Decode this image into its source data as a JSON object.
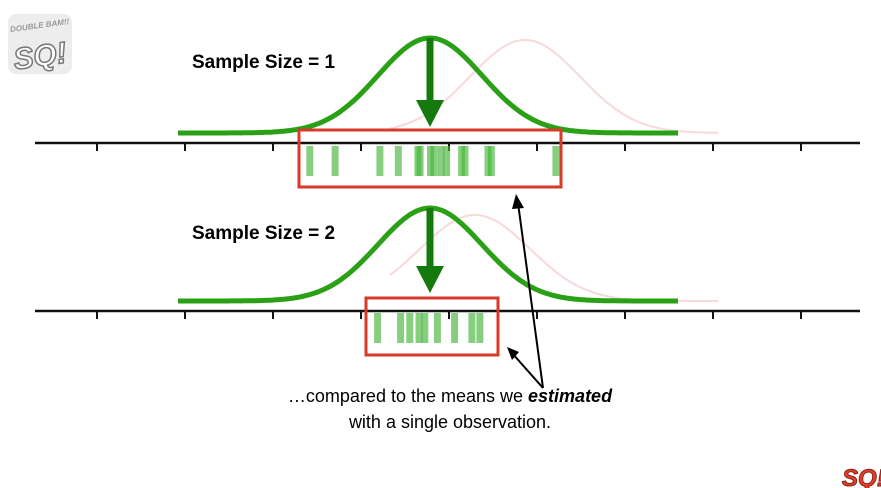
{
  "labels": {
    "sample_size_1": "Sample Size = 1",
    "sample_size_2": "Sample Size = 2"
  },
  "caption": {
    "line1_prefix": "…compared to the means we ",
    "line1_emphasis": "estimated",
    "line2": "with a single observation."
  },
  "logo": {
    "text_big": "SQ!",
    "text_small": "DOUBLE BAM!!"
  },
  "colors": {
    "curve": "#2aa016",
    "arrow": "#157a0d",
    "bars": "#47b63a",
    "box": "#d63a2a",
    "axis": "#111111",
    "ghost_curve": "#f3c9c9"
  },
  "panels": [
    {
      "name": "sample-size-1",
      "observations": [
        -10.5,
        -8.3,
        -4.4,
        -2.8,
        -1.1,
        -0.9,
        0,
        0.3,
        0.9,
        1.4,
        2.7,
        3.0,
        5.0,
        5.3,
        10.9
      ],
      "tick_labels": []
    },
    {
      "name": "sample-size-2",
      "observations": [
        -4.6,
        -2.6,
        -1.8,
        -1.0,
        -0.5,
        0.6,
        2.1,
        3.6,
        4.3
      ],
      "tick_labels": []
    }
  ]
}
